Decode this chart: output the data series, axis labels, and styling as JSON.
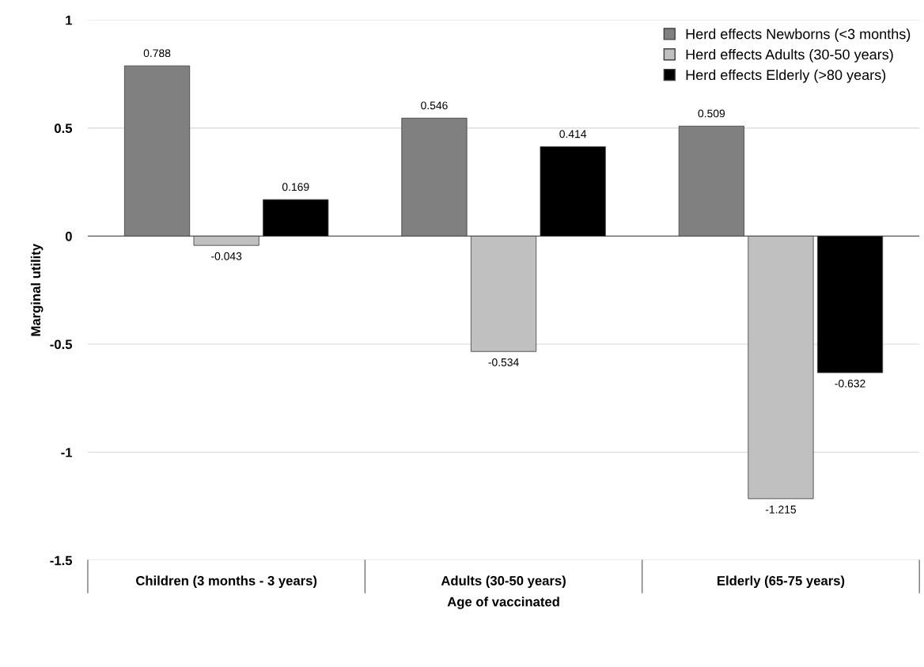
{
  "chart_data": {
    "type": "bar",
    "xlabel": "Age of vaccinated",
    "ylabel": "Marginal utility",
    "categories": [
      "Children (3 months - 3 years)",
      "Adults (30-50 years)",
      "Elderly (65-75 years)"
    ],
    "series": [
      {
        "name": "Herd effects Newborns (<3 months)",
        "color": "#808080",
        "values": [
          0.788,
          0.546,
          0.509
        ]
      },
      {
        "name": "Herd effects Adults (30-50 years)",
        "color": "#c0c0c0",
        "values": [
          -0.043,
          -0.534,
          -1.215
        ]
      },
      {
        "name": "Herd effects Elderly (>80 years)",
        "color": "#000000",
        "values": [
          0.169,
          0.414,
          -0.632
        ]
      }
    ],
    "ylim": [
      -1.5,
      1
    ],
    "yticks": [
      -1.5,
      -1,
      -0.5,
      0,
      0.5,
      1
    ],
    "grid": "y",
    "legend": "top right",
    "data_labels": true
  }
}
